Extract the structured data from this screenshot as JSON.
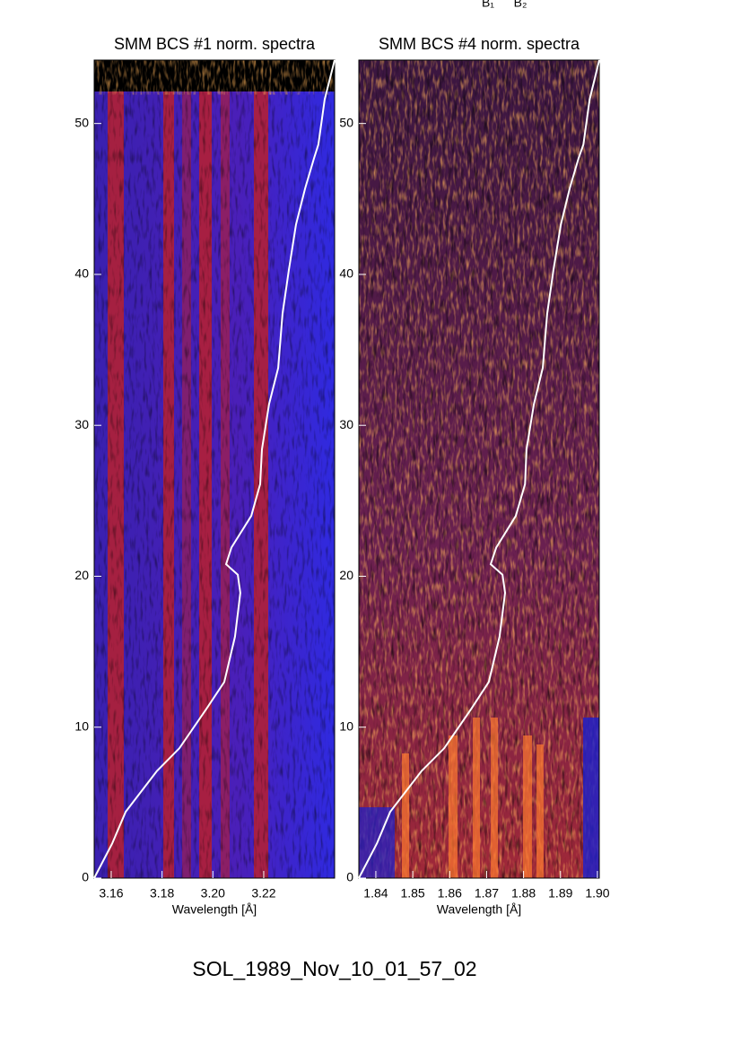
{
  "chart_data": [
    {
      "type": "spectrogram",
      "title": "SMM BCS #1 norm. spectra",
      "xlabel": "Wavelength [Å]",
      "xlim": [
        3.1533,
        3.2479
      ],
      "ylim": [
        0,
        54.2
      ],
      "xticks": [
        3.16,
        3.18,
        {
          "value": 3.2,
          "label": "3.20"
        },
        3.22
      ],
      "yticks": [
        0,
        10,
        20,
        30,
        40,
        50
      ],
      "line": {
        "color": "#ffffff",
        "x": [
          3.1533,
          3.1604,
          3.1657,
          3.178,
          3.1868,
          3.1974,
          3.2045,
          3.2087,
          3.2108,
          3.2098,
          3.2052,
          3.2073,
          3.2151,
          3.2186,
          3.2193,
          3.2221,
          3.2257,
          3.2274,
          3.2299,
          3.2327,
          3.2363,
          3.2398,
          3.2415,
          3.244,
          3.2479
        ],
        "y": [
          0,
          2.3,
          4.4,
          7.1,
          8.6,
          11.2,
          13.0,
          16.0,
          18.9,
          20.1,
          20.8,
          21.9,
          24.0,
          26.1,
          28.4,
          31.4,
          33.8,
          37.4,
          40.3,
          43.3,
          45.7,
          47.7,
          48.6,
          51.6,
          54.2
        ]
      }
    },
    {
      "type": "spectrogram",
      "title": "SMM BCS #4 norm. spectra",
      "xlabel": "Wavelength [Å]",
      "xlim": [
        1.8354,
        1.9005
      ],
      "ylim": [
        0,
        54.2
      ],
      "xticks": [
        1.84,
        1.85,
        1.86,
        1.87,
        1.88,
        1.89,
        {
          "value": 1.9,
          "label": "1.90"
        }
      ],
      "yticks": [
        0,
        10,
        20,
        30,
        40,
        50
      ],
      "line": {
        "color": "#ffffff",
        "x": [
          1.8354,
          1.8403,
          1.8439,
          1.8524,
          1.8585,
          1.8658,
          1.8706,
          1.8735,
          1.875,
          1.8743,
          1.8711,
          1.8726,
          1.8779,
          1.8804,
          1.8808,
          1.8828,
          1.8852,
          1.8864,
          1.8881,
          1.8901,
          1.8925,
          1.8949,
          1.8962,
          1.8979,
          1.9005
        ],
        "y": [
          0,
          2.3,
          4.4,
          7.1,
          8.6,
          11.2,
          13.0,
          16.0,
          18.9,
          20.1,
          20.8,
          21.9,
          24.0,
          26.1,
          28.4,
          31.4,
          33.8,
          37.4,
          40.3,
          43.3,
          45.7,
          47.7,
          48.6,
          51.6,
          54.2
        ]
      }
    }
  ],
  "annotations": [
    "B₁",
    "B₂"
  ],
  "footer": "SOL_1989_Nov_10_01_57_02"
}
